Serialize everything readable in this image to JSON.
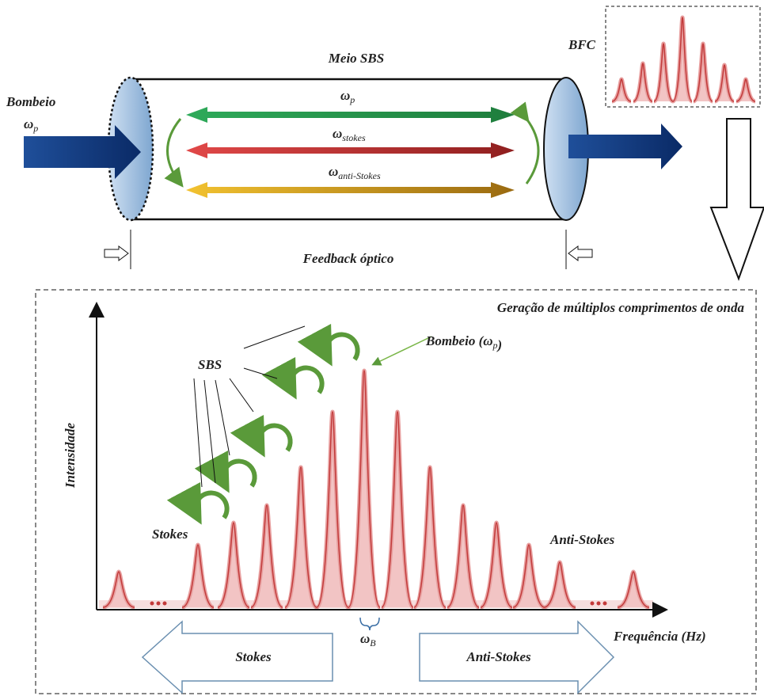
{
  "top": {
    "medium_label": "Meio SBS",
    "bfc_label": "BFC",
    "pump_label": "Bombeio",
    "pump_symbol": {
      "symbol": "ω",
      "sub": "p"
    },
    "inner_arrows": [
      {
        "symbol": "ω",
        "sub": "p"
      },
      {
        "symbol": "ω",
        "sub": "stokes"
      },
      {
        "symbol": "ω",
        "sub": "anti-Stokes"
      }
    ],
    "feedback_label": "Feedback óptico"
  },
  "bottom": {
    "title": "Geração de múltiplos comprimentos de onda",
    "sbs_label": "SBS",
    "pump_label": "Bombeio (",
    "pump_symbol": {
      "symbol": "ω",
      "sub": "p"
    },
    "pump_close": ")",
    "y_axis_label": "Intensidade",
    "stokes_label": "Stokes",
    "anti_stokes_label": "Anti-Stokes",
    "brillouin_symbol": {
      "symbol": "ω",
      "sub": "B"
    },
    "x_axis_label": "Frequência (Hz)",
    "left_arrow_label": "Stokes",
    "right_arrow_label": "Anti-Stokes"
  }
}
